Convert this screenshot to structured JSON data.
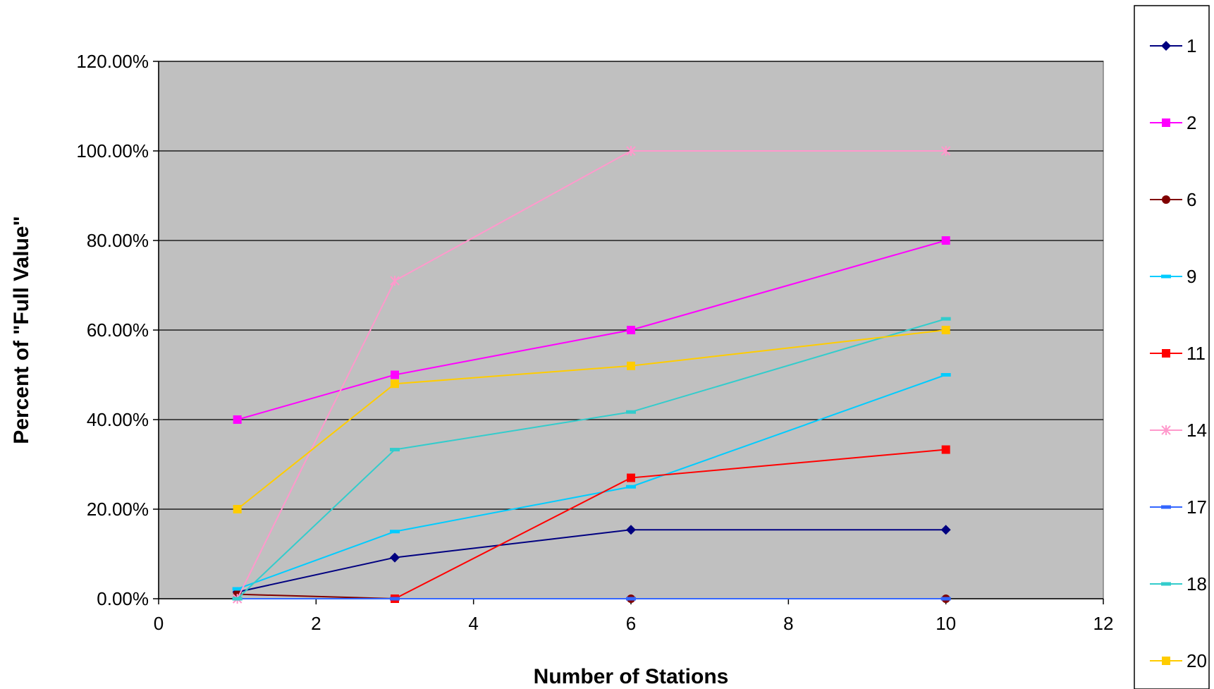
{
  "chart_data": {
    "type": "line",
    "xlabel": "Number of Stations",
    "ylabel": "Percent of \"Full Value\"",
    "xlim": [
      0,
      12
    ],
    "ylim": [
      0,
      1.2
    ],
    "x_ticks": [
      0,
      2,
      4,
      6,
      8,
      10,
      12
    ],
    "y_ticks": [
      0,
      0.2,
      0.4,
      0.6,
      0.8,
      1.0,
      1.2
    ],
    "y_tick_labels": [
      "0.00%",
      "20.00%",
      "40.00%",
      "60.00%",
      "80.00%",
      "100.00%",
      "120.00%"
    ],
    "plot_background": "#c0c0c0",
    "grid": "horizontal",
    "legend_position": "right",
    "x": [
      1,
      3,
      6,
      10
    ],
    "series": [
      {
        "name": "1",
        "color": "#000080",
        "marker": "diamond",
        "values": [
          0.015,
          0.092,
          0.154,
          0.154
        ]
      },
      {
        "name": "2",
        "color": "#ff00ff",
        "marker": "square",
        "values": [
          0.4,
          0.5,
          0.6,
          0.8
        ]
      },
      {
        "name": "6",
        "color": "#800000",
        "marker": "circle",
        "values": [
          0.01,
          0.0,
          0.0,
          0.0
        ]
      },
      {
        "name": "9",
        "color": "#00ccff",
        "marker": "dash",
        "values": [
          0.022,
          0.15,
          0.25,
          0.5
        ]
      },
      {
        "name": "11",
        "color": "#ff0000",
        "marker": "square",
        "values": [
          null,
          0.0,
          0.27,
          0.333
        ]
      },
      {
        "name": "14",
        "color": "#ff99cc",
        "marker": "star",
        "values": [
          0.0,
          0.71,
          1.0,
          1.0
        ]
      },
      {
        "name": "17",
        "color": "#3366ff",
        "marker": "dash",
        "values": [
          0.0,
          0.0,
          0.0,
          0.0
        ]
      },
      {
        "name": "18",
        "color": "#33cccc",
        "marker": "dash",
        "values": [
          0.0,
          0.333,
          0.417,
          0.625
        ]
      },
      {
        "name": "20",
        "color": "#ffcc00",
        "marker": "square",
        "values": [
          0.2,
          0.48,
          0.52,
          0.6
        ]
      }
    ]
  }
}
